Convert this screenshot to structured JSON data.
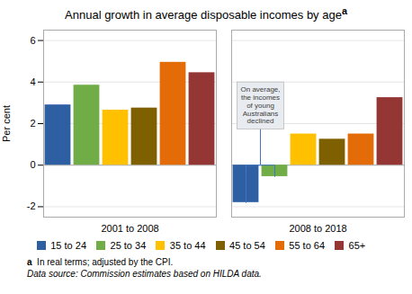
{
  "chart_data": {
    "type": "bar",
    "title": "Annual growth in average disposable incomes by age",
    "title_superscript": "a",
    "ylabel": "Per cent",
    "categories": [
      "2001 to 2008",
      "2008 to 2018"
    ],
    "series": [
      {
        "name": "15 to 24",
        "color": "#2e5fa3",
        "values": [
          2.9,
          -1.8
        ]
      },
      {
        "name": "25 to 34",
        "color": "#70ad47",
        "values": [
          3.85,
          -0.55
        ]
      },
      {
        "name": "35 to 44",
        "color": "#ffc000",
        "values": [
          2.65,
          1.5
        ]
      },
      {
        "name": "45 to 54",
        "color": "#7f6000",
        "values": [
          2.75,
          1.25
        ]
      },
      {
        "name": "55 to 64",
        "color": "#e36c09",
        "values": [
          4.95,
          1.5
        ]
      },
      {
        "name": "65+",
        "color": "#943634",
        "values": [
          4.45,
          3.25
        ]
      }
    ],
    "ylim": [
      -2.5,
      6.5
    ],
    "yticks": [
      -2,
      0,
      2,
      4,
      6
    ],
    "grid": true,
    "legend": "bottom",
    "annotations": [
      {
        "text": "On average,\nthe incomes\nof young\nAustralians\ndeclined",
        "category": "2008 to 2018",
        "series": [
          "15 to 24",
          "25 to 34"
        ]
      }
    ],
    "notes": [
      {
        "ref": "a",
        "text": "In real terms; adjusted by the CPI."
      },
      {
        "text": "Data source: Commission estimates based on HILDA data."
      }
    ]
  }
}
